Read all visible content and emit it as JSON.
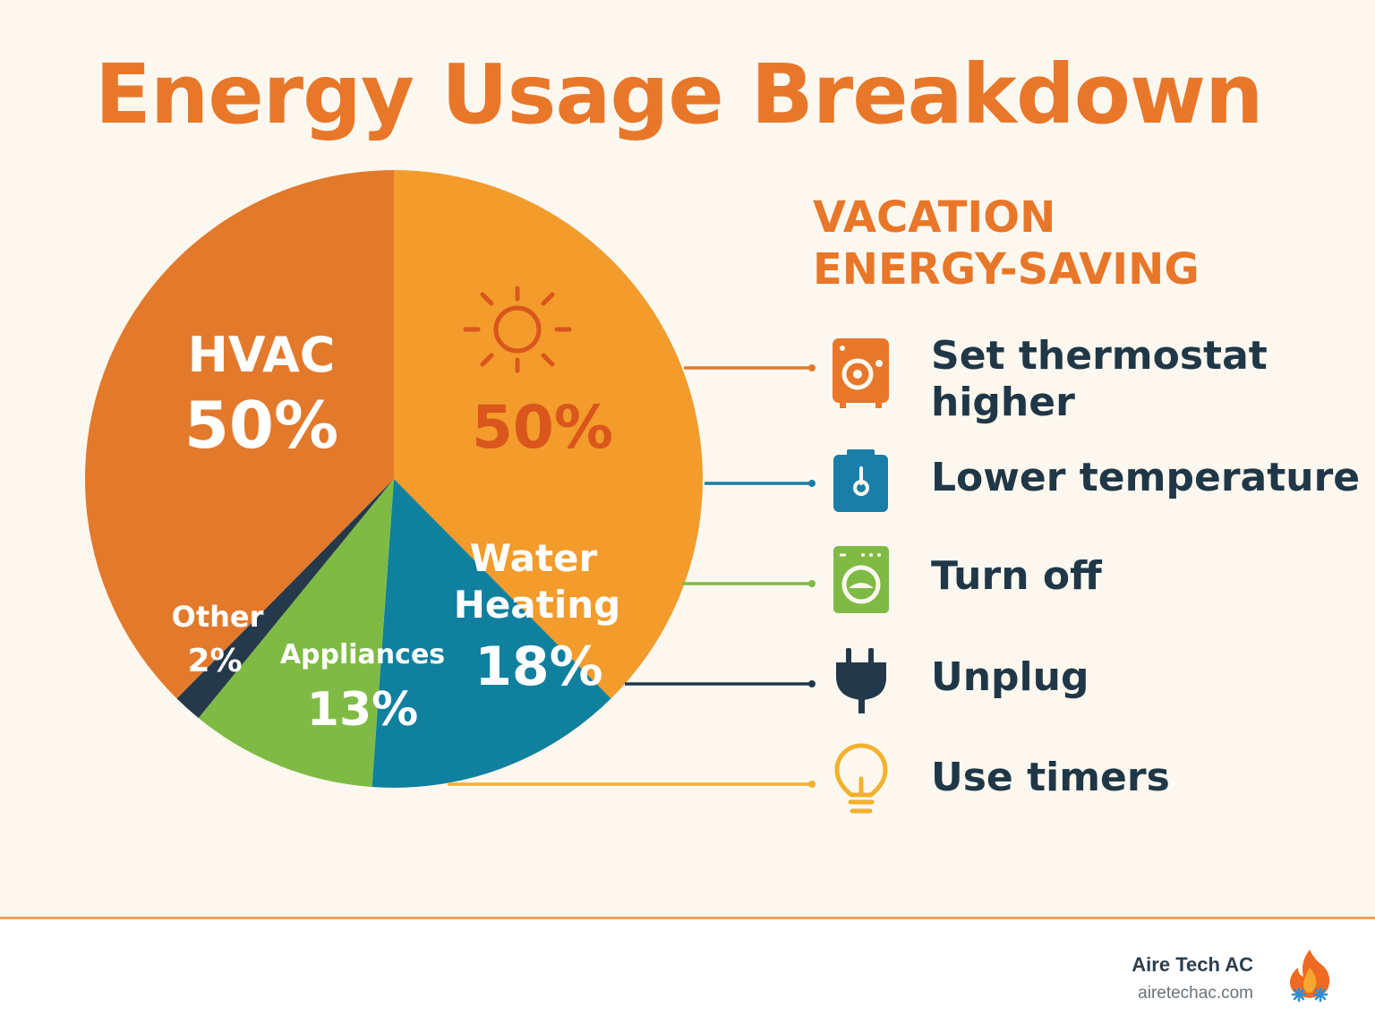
{
  "title": "Energy Usage Breakdown",
  "tips_panel": {
    "heading_line1": "VACATION",
    "heading_line2": "ENERGY-SAVING",
    "items": [
      {
        "label_line1": "Set thermostat",
        "label_line2": "higher",
        "icon": "thermostat-icon",
        "color": "#e8772a"
      },
      {
        "label_line1": "Lower temperature",
        "label_line2": "",
        "icon": "water-heater-icon",
        "color": "#1a7fa8"
      },
      {
        "label_line1": "Turn off",
        "label_line2": "",
        "icon": "washing-machine-icon",
        "color": "#7fbb44"
      },
      {
        "label_line1": "Unplug",
        "label_line2": "",
        "icon": "plug-icon",
        "color": "#23394a"
      },
      {
        "label_line1": "Use timers",
        "label_line2": "",
        "icon": "lightbulb-icon",
        "color": "#f2b12e"
      }
    ]
  },
  "chart_data": {
    "type": "pie",
    "title": "Energy Usage Breakdown",
    "slices": [
      {
        "label": "",
        "value": 50,
        "value_label": "50%",
        "color": "#f39b2b",
        "icon": "sun-icon"
      },
      {
        "label": "Water Heating",
        "value": 18,
        "value_label": "18%",
        "color": "#10809f"
      },
      {
        "label": "Appliances",
        "value": 13,
        "value_label": "13%",
        "color": "#7fbb44"
      },
      {
        "label": "Other",
        "value": 2,
        "value_label": "2%",
        "color": "#26394b"
      },
      {
        "label": "HVAC",
        "value": 50,
        "value_label": "50%",
        "color": "#e3792b"
      }
    ]
  },
  "footer": {
    "brand_name": "Aire Tech AC",
    "brand_url": "airetechac.com"
  }
}
